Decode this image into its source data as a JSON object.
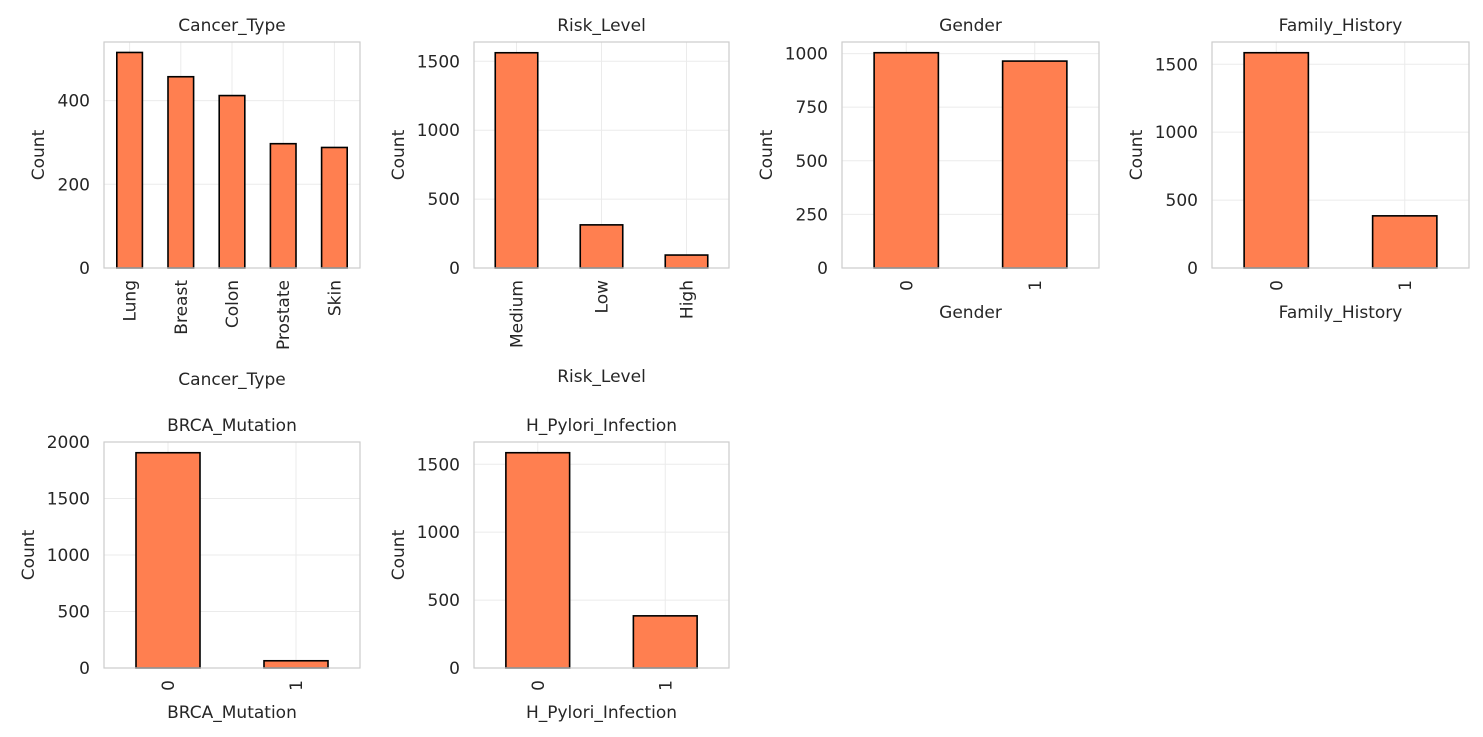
{
  "style": {
    "bar_color": "#ff7f50",
    "bar_edge": "#000000",
    "grid_color": "#ebebeb",
    "frame_color": "#cccccc",
    "text_color": "#262626"
  },
  "chart_data": [
    {
      "type": "bar",
      "title": "Cancer_Type",
      "xlabel": "Cancer_Type",
      "ylabel": "Count",
      "categories": [
        "Lung",
        "Breast",
        "Colon",
        "Prostate",
        "Skin"
      ],
      "values": [
        515,
        457,
        412,
        297,
        288
      ],
      "ylim": [
        0,
        540
      ],
      "yticks": [
        0,
        200,
        400
      ],
      "grid": true
    },
    {
      "type": "bar",
      "title": "Risk_Level",
      "xlabel": "Risk_Level",
      "ylabel": "Count",
      "categories": [
        "Medium",
        "Low",
        "High"
      ],
      "values": [
        1562,
        313,
        94
      ],
      "ylim": [
        0,
        1640
      ],
      "yticks": [
        0,
        500,
        1000,
        1500
      ],
      "grid": true
    },
    {
      "type": "bar",
      "title": "Gender",
      "xlabel": "Gender",
      "ylabel": "Count",
      "categories": [
        "0",
        "1"
      ],
      "values": [
        1004,
        965
      ],
      "ylim": [
        0,
        1054
      ],
      "yticks": [
        0,
        250,
        500,
        750,
        1000
      ],
      "grid": true
    },
    {
      "type": "bar",
      "title": "Family_History",
      "xlabel": "Family_History",
      "ylabel": "Count",
      "categories": [
        "0",
        "1"
      ],
      "values": [
        1585,
        384
      ],
      "ylim": [
        0,
        1664
      ],
      "yticks": [
        0,
        500,
        1000,
        1500
      ],
      "grid": true
    },
    {
      "type": "bar",
      "title": "BRCA_Mutation",
      "xlabel": "BRCA_Mutation",
      "ylabel": "Count",
      "categories": [
        "0",
        "1"
      ],
      "values": [
        1905,
        64
      ],
      "ylim": [
        0,
        2000
      ],
      "yticks": [
        0,
        500,
        1000,
        1500,
        2000
      ],
      "grid": true
    },
    {
      "type": "bar",
      "title": "H_Pylori_Infection",
      "xlabel": "H_Pylori_Infection",
      "ylabel": "Count",
      "categories": [
        "0",
        "1"
      ],
      "values": [
        1585,
        384
      ],
      "ylim": [
        0,
        1664
      ],
      "yticks": [
        0,
        500,
        1000,
        1500
      ],
      "grid": true
    }
  ]
}
